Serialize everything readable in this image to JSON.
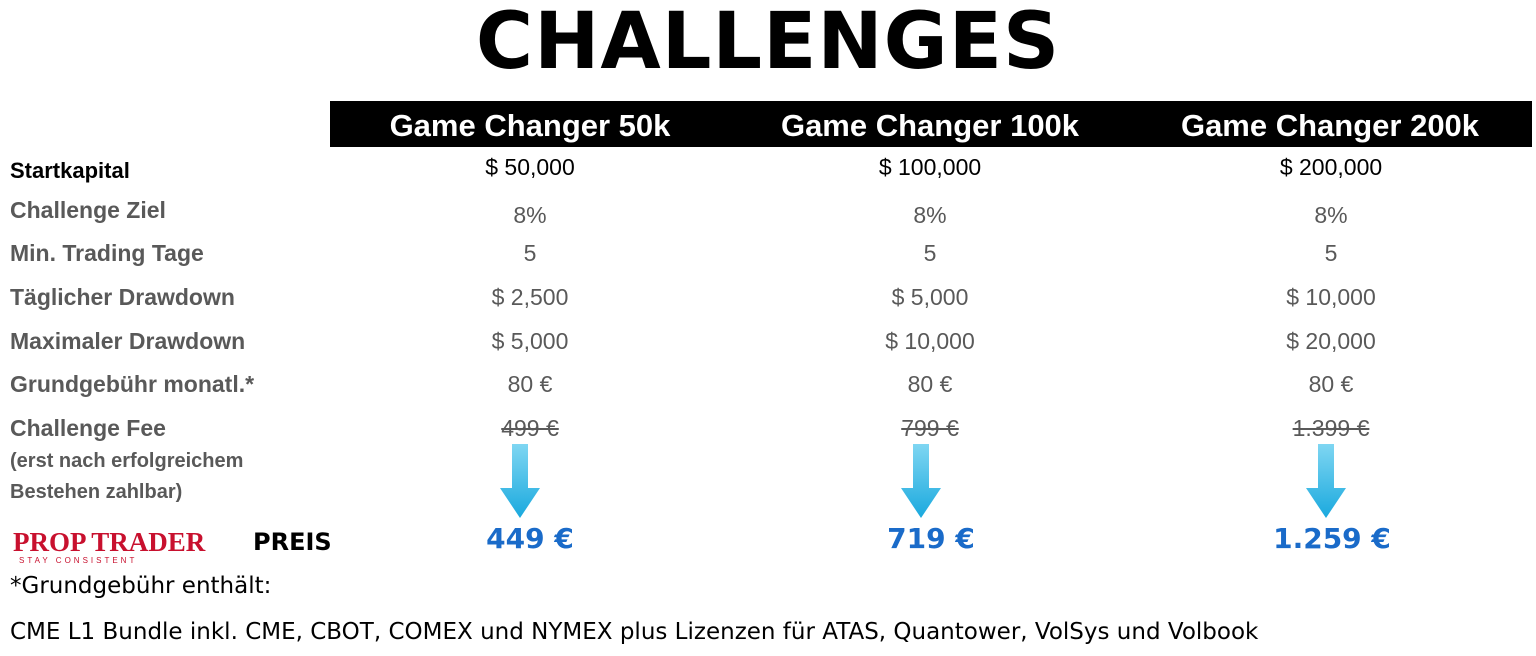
{
  "title": "CHALLENGES",
  "plans": [
    {
      "name": "Game Changer 50k",
      "startkapital": "$ 50,000",
      "ziel": "8%",
      "tage": "5",
      "daily_dd": "$ 2,500",
      "max_dd": "$ 5,000",
      "grundgebuehr": "80 €",
      "fee_old": "499 €",
      "price": "449 €"
    },
    {
      "name": "Game Changer 100k",
      "startkapital": "$ 100,000",
      "ziel": "8%",
      "tage": "5",
      "daily_dd": "$ 5,000",
      "max_dd": "$ 10,000",
      "grundgebuehr": "80 €",
      "fee_old": "799 €",
      "price": "719 €"
    },
    {
      "name": "Game Changer 200k",
      "startkapital": "$ 200,000",
      "ziel": "8%",
      "tage": "5",
      "daily_dd": "$ 10,000",
      "max_dd": "$ 20,000",
      "grundgebuehr": "80 €",
      "fee_old": "1.399 €",
      "price": "1.259 €"
    }
  ],
  "labels": {
    "startkapital": "Startkapital",
    "ziel": "Challenge Ziel",
    "tage": "Min. Trading Tage",
    "daily_dd": "Täglicher Drawdown",
    "max_dd": "Maximaler Drawdown",
    "grundgebuehr": "Grundgebühr monatl.*",
    "fee": "Challenge Fee",
    "fee_note_1": "(erst nach erfolgreichem",
    "fee_note_2": "Bestehen zahlbar)",
    "preis": "PREIS"
  },
  "logo": {
    "main": "PROP TRADER",
    "tagline": "STAY CONSISTENT"
  },
  "footnote": {
    "line1": "*Grundgebühr enthält:",
    "line2": "CME L1 Bundle inkl. CME, CBOT, COMEX und NYMEX plus Lizenzen für ATAS, Quantower, VolSys und Volbook"
  },
  "colors": {
    "price": "#1a6bc9",
    "arrow": "#29b6e6",
    "logo": "#c8102e",
    "header": "#000000",
    "muted": "#595959"
  }
}
